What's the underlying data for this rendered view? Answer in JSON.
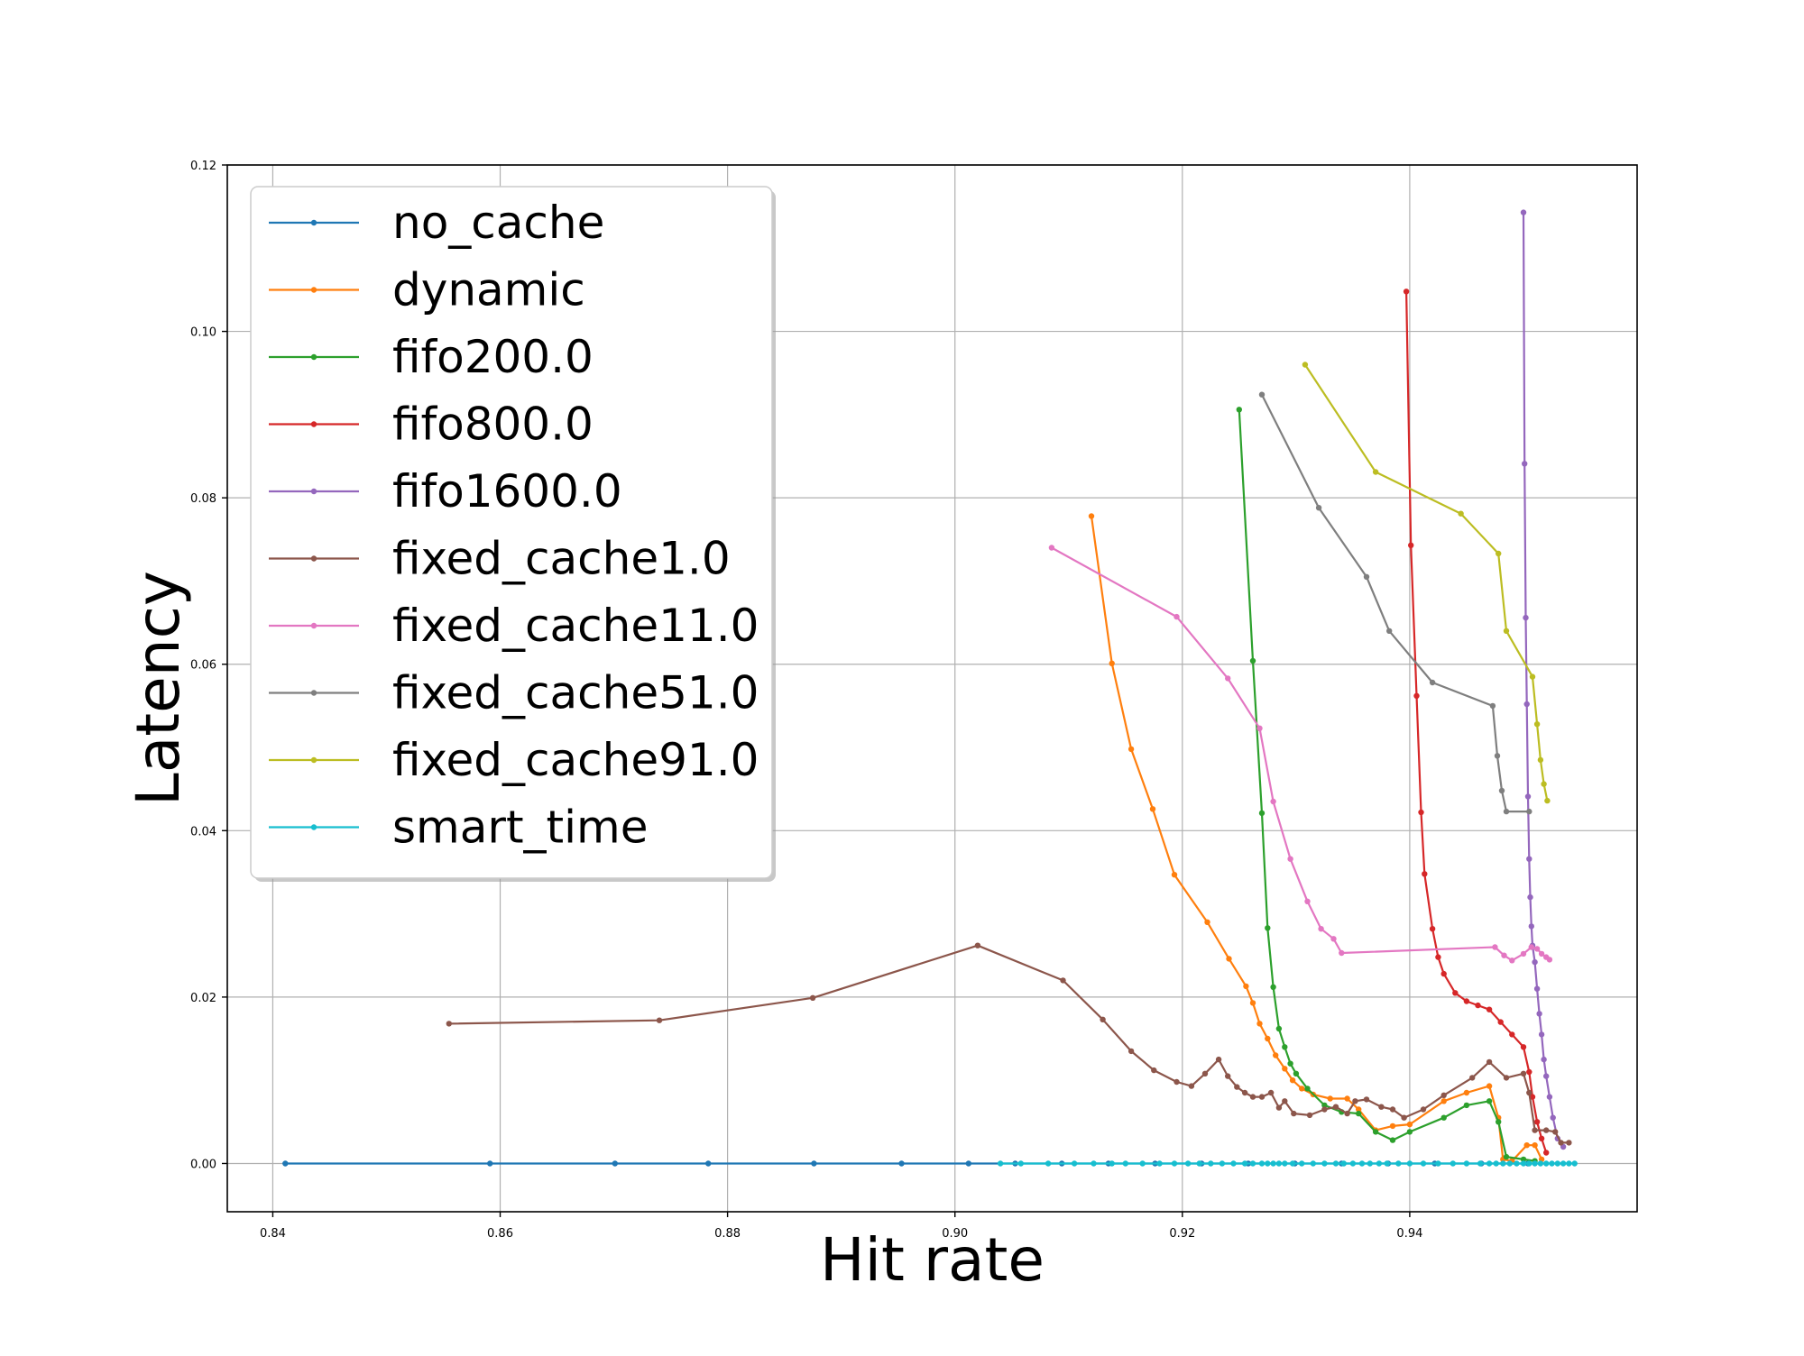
{
  "chart_data": {
    "type": "line",
    "title": "",
    "xlabel": "Hit rate",
    "ylabel": "Latency",
    "xlim": [
      0.836,
      0.96
    ],
    "ylim": [
      -0.0058,
      0.12
    ],
    "x_ticks": [
      0.84,
      0.86,
      0.88,
      0.9,
      0.92,
      0.94
    ],
    "x_tick_labels": [
      "0.84",
      "0.86",
      "0.88",
      "0.90",
      "0.92",
      "0.94"
    ],
    "y_ticks": [
      0.0,
      0.02,
      0.04,
      0.06,
      0.08,
      0.1,
      0.12
    ],
    "y_tick_labels": [
      "0.00",
      "0.02",
      "0.04",
      "0.06",
      "0.08",
      "0.10",
      "0.12"
    ],
    "grid": true,
    "legend_position": "top-left",
    "series": [
      {
        "name": "no_cache",
        "color": "#1f77b4",
        "points": [
          [
            0.8411,
            0
          ],
          [
            0.8591,
            0
          ],
          [
            0.8701,
            0
          ],
          [
            0.8783,
            0
          ],
          [
            0.8876,
            0
          ],
          [
            0.8953,
            0
          ],
          [
            0.9012,
            0
          ],
          [
            0.9053,
            0
          ],
          [
            0.9094,
            0
          ],
          [
            0.9135,
            0
          ],
          [
            0.9176,
            0
          ],
          [
            0.9217,
            0
          ],
          [
            0.9258,
            0
          ],
          [
            0.9299,
            0
          ],
          [
            0.934,
            0
          ],
          [
            0.9381,
            0
          ],
          [
            0.9422,
            0
          ],
          [
            0.9463,
            0
          ],
          [
            0.9504,
            0
          ]
        ]
      },
      {
        "name": "dynamic",
        "color": "#ff7f0e",
        "points": [
          [
            0.912,
            0.0778
          ],
          [
            0.9138,
            0.0601
          ],
          [
            0.9155,
            0.0498
          ],
          [
            0.9174,
            0.0426
          ],
          [
            0.9193,
            0.0347
          ],
          [
            0.9222,
            0.029
          ],
          [
            0.9241,
            0.0246
          ],
          [
            0.9256,
            0.0213
          ],
          [
            0.9262,
            0.0193
          ],
          [
            0.9268,
            0.0168
          ],
          [
            0.9275,
            0.015
          ],
          [
            0.9282,
            0.013
          ],
          [
            0.929,
            0.0114
          ],
          [
            0.9297,
            0.01
          ],
          [
            0.9305,
            0.009
          ],
          [
            0.9315,
            0.0083
          ],
          [
            0.933,
            0.0078
          ],
          [
            0.9345,
            0.0078
          ],
          [
            0.9355,
            0.0065
          ],
          [
            0.937,
            0.004
          ],
          [
            0.9385,
            0.0045
          ],
          [
            0.94,
            0.0047
          ],
          [
            0.943,
            0.0075
          ],
          [
            0.945,
            0.0085
          ],
          [
            0.947,
            0.0093
          ],
          [
            0.9478,
            0.0055
          ],
          [
            0.9482,
            0.0005
          ],
          [
            0.949,
            0.0003
          ],
          [
            0.9503,
            0.0022
          ],
          [
            0.951,
            0.0022
          ],
          [
            0.9516,
            0.0005
          ]
        ]
      },
      {
        "name": "fifo200.0",
        "color": "#2ca02c",
        "points": [
          [
            0.925,
            0.0906
          ],
          [
            0.9262,
            0.0604
          ],
          [
            0.927,
            0.0421
          ],
          [
            0.9275,
            0.0283
          ],
          [
            0.928,
            0.0212
          ],
          [
            0.9285,
            0.0162
          ],
          [
            0.929,
            0.014
          ],
          [
            0.9295,
            0.012
          ],
          [
            0.93,
            0.0108
          ],
          [
            0.931,
            0.009
          ],
          [
            0.9325,
            0.007
          ],
          [
            0.934,
            0.0062
          ],
          [
            0.9355,
            0.006
          ],
          [
            0.937,
            0.0038
          ],
          [
            0.9385,
            0.0028
          ],
          [
            0.94,
            0.0038
          ],
          [
            0.943,
            0.0055
          ],
          [
            0.945,
            0.007
          ],
          [
            0.947,
            0.0075
          ],
          [
            0.9478,
            0.005
          ],
          [
            0.9485,
            0.0008
          ],
          [
            0.95,
            0.0005
          ],
          [
            0.951,
            0.0003
          ]
        ]
      },
      {
        "name": "fifo800.0",
        "color": "#d62728",
        "points": [
          [
            0.9397,
            0.1048
          ],
          [
            0.9401,
            0.0743
          ],
          [
            0.9406,
            0.0562
          ],
          [
            0.941,
            0.0422
          ],
          [
            0.9413,
            0.0348
          ],
          [
            0.942,
            0.0282
          ],
          [
            0.9425,
            0.0248
          ],
          [
            0.943,
            0.0228
          ],
          [
            0.944,
            0.0205
          ],
          [
            0.945,
            0.0195
          ],
          [
            0.946,
            0.019
          ],
          [
            0.947,
            0.0185
          ],
          [
            0.948,
            0.017
          ],
          [
            0.949,
            0.0155
          ],
          [
            0.95,
            0.014
          ],
          [
            0.9505,
            0.011
          ],
          [
            0.9508,
            0.008
          ],
          [
            0.9512,
            0.005
          ],
          [
            0.9516,
            0.003
          ],
          [
            0.952,
            0.0013
          ]
        ]
      },
      {
        "name": "fifo1600.0",
        "color": "#9467bd",
        "points": [
          [
            0.95,
            0.1143
          ],
          [
            0.9501,
            0.0841
          ],
          [
            0.9502,
            0.0656
          ],
          [
            0.9503,
            0.0552
          ],
          [
            0.9504,
            0.0441
          ],
          [
            0.9505,
            0.0366
          ],
          [
            0.9506,
            0.032
          ],
          [
            0.9507,
            0.0285
          ],
          [
            0.9508,
            0.0262
          ],
          [
            0.951,
            0.0242
          ],
          [
            0.9512,
            0.021
          ],
          [
            0.9514,
            0.018
          ],
          [
            0.9516,
            0.0155
          ],
          [
            0.9518,
            0.0125
          ],
          [
            0.952,
            0.0105
          ],
          [
            0.9523,
            0.008
          ],
          [
            0.9526,
            0.0055
          ],
          [
            0.953,
            0.003
          ],
          [
            0.9535,
            0.002
          ]
        ]
      },
      {
        "name": "fixed_cache1.0",
        "color": "#8c564b",
        "points": [
          [
            0.8555,
            0.0168
          ],
          [
            0.874,
            0.0172
          ],
          [
            0.8875,
            0.0199
          ],
          [
            0.902,
            0.0262
          ],
          [
            0.9095,
            0.022
          ],
          [
            0.913,
            0.0173
          ],
          [
            0.9155,
            0.0135
          ],
          [
            0.9175,
            0.0112
          ],
          [
            0.9195,
            0.0098
          ],
          [
            0.9208,
            0.0093
          ],
          [
            0.922,
            0.0108
          ],
          [
            0.9232,
            0.0125
          ],
          [
            0.924,
            0.0105
          ],
          [
            0.9248,
            0.0092
          ],
          [
            0.9255,
            0.0085
          ],
          [
            0.9262,
            0.008
          ],
          [
            0.927,
            0.008
          ],
          [
            0.9278,
            0.0085
          ],
          [
            0.9285,
            0.0067
          ],
          [
            0.929,
            0.0075
          ],
          [
            0.9298,
            0.006
          ],
          [
            0.9312,
            0.0058
          ],
          [
            0.9325,
            0.0065
          ],
          [
            0.9335,
            0.0068
          ],
          [
            0.9345,
            0.006
          ],
          [
            0.9352,
            0.0075
          ],
          [
            0.9362,
            0.0077
          ],
          [
            0.9375,
            0.0068
          ],
          [
            0.9385,
            0.0065
          ],
          [
            0.9395,
            0.0055
          ],
          [
            0.9412,
            0.0065
          ],
          [
            0.943,
            0.0082
          ],
          [
            0.9455,
            0.0103
          ],
          [
            0.947,
            0.0122
          ],
          [
            0.9485,
            0.0103
          ],
          [
            0.95,
            0.0108
          ],
          [
            0.9505,
            0.0085
          ],
          [
            0.951,
            0.004
          ],
          [
            0.952,
            0.004
          ],
          [
            0.9528,
            0.0038
          ],
          [
            0.9533,
            0.0025
          ],
          [
            0.954,
            0.0025
          ]
        ]
      },
      {
        "name": "fixed_cache11.0",
        "color": "#e377c2",
        "points": [
          [
            0.9085,
            0.074
          ],
          [
            0.9195,
            0.0657
          ],
          [
            0.924,
            0.0583
          ],
          [
            0.9268,
            0.0523
          ],
          [
            0.928,
            0.0435
          ],
          [
            0.9295,
            0.0366
          ],
          [
            0.931,
            0.0315
          ],
          [
            0.9322,
            0.0282
          ],
          [
            0.9333,
            0.027
          ],
          [
            0.934,
            0.0253
          ],
          [
            0.9475,
            0.026
          ],
          [
            0.9483,
            0.025
          ],
          [
            0.949,
            0.0244
          ],
          [
            0.95,
            0.0252
          ],
          [
            0.9507,
            0.026
          ],
          [
            0.9512,
            0.0258
          ],
          [
            0.9516,
            0.0252
          ],
          [
            0.952,
            0.0248
          ],
          [
            0.9523,
            0.0245
          ]
        ]
      },
      {
        "name": "fixed_cache51.0",
        "color": "#7f7f7f",
        "points": [
          [
            0.927,
            0.0924
          ],
          [
            0.932,
            0.0788
          ],
          [
            0.9362,
            0.0705
          ],
          [
            0.9382,
            0.064
          ],
          [
            0.942,
            0.0578
          ],
          [
            0.9473,
            0.055
          ],
          [
            0.9477,
            0.049
          ],
          [
            0.9481,
            0.0448
          ],
          [
            0.9485,
            0.0423
          ],
          [
            0.9505,
            0.0423
          ]
        ]
      },
      {
        "name": "fixed_cache91.0",
        "color": "#bcbd22",
        "points": [
          [
            0.9308,
            0.096
          ],
          [
            0.937,
            0.0831
          ],
          [
            0.9445,
            0.0781
          ],
          [
            0.9478,
            0.0733
          ],
          [
            0.9485,
            0.064
          ],
          [
            0.9508,
            0.0585
          ],
          [
            0.9512,
            0.0528
          ],
          [
            0.9515,
            0.0485
          ],
          [
            0.9518,
            0.0456
          ],
          [
            0.9521,
            0.0436
          ]
        ]
      },
      {
        "name": "smart_time",
        "color": "#17becf",
        "points": [
          [
            0.904,
            0
          ],
          [
            0.9058,
            0
          ],
          [
            0.9082,
            0
          ],
          [
            0.9105,
            0
          ],
          [
            0.9122,
            0
          ],
          [
            0.9138,
            0
          ],
          [
            0.915,
            0
          ],
          [
            0.9165,
            0
          ],
          [
            0.918,
            0
          ],
          [
            0.9193,
            0
          ],
          [
            0.9205,
            0
          ],
          [
            0.9215,
            0
          ],
          [
            0.9225,
            0
          ],
          [
            0.9235,
            0
          ],
          [
            0.9245,
            0
          ],
          [
            0.9255,
            0
          ],
          [
            0.9262,
            0
          ],
          [
            0.927,
            0
          ],
          [
            0.9275,
            0
          ],
          [
            0.928,
            0
          ],
          [
            0.9285,
            0
          ],
          [
            0.929,
            0
          ],
          [
            0.9297,
            0
          ],
          [
            0.9305,
            0
          ],
          [
            0.9315,
            0
          ],
          [
            0.9325,
            0
          ],
          [
            0.9335,
            0
          ],
          [
            0.9342,
            0
          ],
          [
            0.935,
            0
          ],
          [
            0.9358,
            0
          ],
          [
            0.9365,
            0
          ],
          [
            0.9373,
            0
          ],
          [
            0.938,
            0
          ],
          [
            0.939,
            0
          ],
          [
            0.94,
            0
          ],
          [
            0.9412,
            0
          ],
          [
            0.9425,
            0
          ],
          [
            0.9438,
            0
          ],
          [
            0.945,
            0
          ],
          [
            0.9462,
            0
          ],
          [
            0.947,
            0
          ],
          [
            0.9476,
            0
          ],
          [
            0.9482,
            0
          ],
          [
            0.9488,
            0
          ],
          [
            0.9494,
            0
          ],
          [
            0.95,
            0
          ],
          [
            0.9505,
            0
          ],
          [
            0.951,
            0
          ],
          [
            0.9515,
            0
          ],
          [
            0.952,
            0
          ],
          [
            0.9525,
            0
          ],
          [
            0.953,
            0
          ],
          [
            0.9535,
            0
          ],
          [
            0.954,
            0
          ],
          [
            0.9545,
            0
          ]
        ]
      }
    ]
  }
}
